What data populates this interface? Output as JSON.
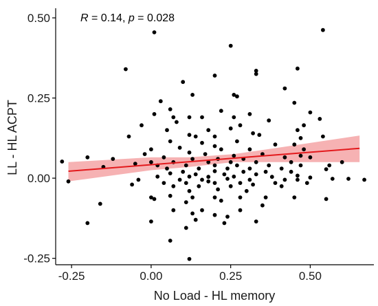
{
  "chart_data": {
    "type": "scatter",
    "xlabel": "No Load - HL memory",
    "ylabel": "LL - HL ACPT",
    "annotation": {
      "r_symbol": "R",
      "r_text": " = 0.14, ",
      "p_symbol": "p",
      "p_text": " = 0.028"
    },
    "xlim": [
      -0.3,
      0.7
    ],
    "ylim": [
      -0.27,
      0.53
    ],
    "x_ticks": [
      -0.25,
      0.0,
      0.25,
      0.5
    ],
    "x_tick_labels": [
      "-0.25",
      "0.00",
      "0.25",
      "0.50"
    ],
    "y_ticks": [
      -0.25,
      0.0,
      0.25,
      0.5
    ],
    "y_tick_labels": [
      "-0.25",
      "0.00",
      "0.25",
      "0.50"
    ],
    "grid": false,
    "colors": {
      "points": "#000000",
      "line": "#e3191c",
      "ribbon": "#f4a5a6"
    },
    "regression": {
      "x_range": [
        -0.26,
        0.655
      ],
      "intercept": 0.042,
      "slope": 0.078,
      "ci_lower": [
        [
          -0.26,
          -0.01
        ],
        [
          0.0,
          0.025
        ],
        [
          0.12,
          0.035
        ],
        [
          0.26,
          0.05
        ],
        [
          0.4,
          0.05
        ],
        [
          0.655,
          0.05
        ]
      ],
      "ci_upper": [
        [
          -0.26,
          0.05
        ],
        [
          0.0,
          0.065
        ],
        [
          0.12,
          0.065
        ],
        [
          0.26,
          0.075
        ],
        [
          0.4,
          0.095
        ],
        [
          0.655,
          0.133
        ]
      ]
    },
    "points": [
      [
        0.01,
        0.455
      ],
      [
        0.54,
        0.462
      ],
      [
        0.25,
        0.413
      ],
      [
        -0.08,
        0.34
      ],
      [
        0.46,
        0.342
      ],
      [
        0.33,
        0.335
      ],
      [
        0.33,
        0.325
      ],
      [
        0.2,
        0.32
      ],
      [
        0.1,
        0.3
      ],
      [
        0.42,
        0.28
      ],
      [
        0.26,
        0.26
      ],
      [
        0.27,
        0.255
      ],
      [
        0.03,
        0.24
      ],
      [
        0.13,
        0.26
      ],
      [
        0.45,
        0.235
      ],
      [
        0.06,
        0.215
      ],
      [
        0.22,
        0.21
      ],
      [
        0.31,
        0.2
      ],
      [
        0.01,
        0.2
      ],
      [
        0.5,
        0.205
      ],
      [
        0.12,
        0.19
      ],
      [
        0.07,
        0.19
      ],
      [
        0.26,
        0.19
      ],
      [
        0.16,
        0.19
      ],
      [
        0.37,
        0.18
      ],
      [
        0.53,
        0.185
      ],
      [
        0.08,
        0.175
      ],
      [
        -0.03,
        0.165
      ],
      [
        0.28,
        0.165
      ],
      [
        0.48,
        0.165
      ],
      [
        0.05,
        0.15
      ],
      [
        0.18,
        0.15
      ],
      [
        0.25,
        0.155
      ],
      [
        0.32,
        0.14
      ],
      [
        0.46,
        0.15
      ],
      [
        -0.07,
        0.13
      ],
      [
        0.12,
        0.135
      ],
      [
        0.14,
        0.13
      ],
      [
        0.2,
        0.13
      ],
      [
        0.34,
        0.135
      ],
      [
        0.47,
        0.125
      ],
      [
        0.54,
        0.13
      ],
      [
        0.06,
        0.115
      ],
      [
        0.16,
        0.11
      ],
      [
        0.27,
        0.115
      ],
      [
        0.39,
        0.105
      ],
      [
        0.45,
        0.105
      ],
      [
        0.0,
        0.09
      ],
      [
        0.09,
        0.095
      ],
      [
        0.22,
        0.09
      ],
      [
        0.31,
        0.09
      ],
      [
        0.48,
        0.09
      ],
      [
        0.2,
        0.1
      ],
      [
        -0.02,
        0.075
      ],
      [
        0.12,
        0.08
      ],
      [
        0.17,
        0.075
      ],
      [
        0.26,
        0.07
      ],
      [
        0.35,
        0.075
      ],
      [
        0.47,
        0.07
      ],
      [
        0.04,
        0.065
      ],
      [
        0.13,
        0.06
      ],
      [
        0.21,
        0.06
      ],
      [
        0.29,
        0.06
      ],
      [
        0.42,
        0.065
      ],
      [
        0.5,
        0.065
      ],
      [
        -0.2,
        0.065
      ],
      [
        -0.12,
        0.06
      ],
      [
        -0.28,
        0.052
      ],
      [
        0.0,
        0.05
      ],
      [
        0.07,
        0.05
      ],
      [
        0.18,
        0.05
      ],
      [
        0.25,
        0.05
      ],
      [
        0.33,
        0.05
      ],
      [
        0.44,
        0.05
      ],
      [
        0.6,
        0.05
      ],
      [
        -0.05,
        0.045
      ],
      [
        0.02,
        0.04
      ],
      [
        0.11,
        0.04
      ],
      [
        0.2,
        0.04
      ],
      [
        0.27,
        0.04
      ],
      [
        0.37,
        0.04
      ],
      [
        0.47,
        0.04
      ],
      [
        0.56,
        0.04
      ],
      [
        -0.15,
        0.035
      ],
      [
        0.05,
        0.03
      ],
      [
        0.15,
        0.03
      ],
      [
        0.24,
        0.03
      ],
      [
        0.31,
        0.03
      ],
      [
        0.41,
        0.03
      ],
      [
        0.55,
        0.028
      ],
      [
        0.1,
        0.02
      ],
      [
        0.2,
        0.022
      ],
      [
        0.29,
        0.02
      ],
      [
        0.36,
        0.02
      ],
      [
        0.44,
        0.02
      ],
      [
        0.06,
        0.015
      ],
      [
        0.14,
        0.012
      ],
      [
        0.23,
        0.012
      ],
      [
        0.33,
        0.012
      ],
      [
        0.46,
        0.008
      ],
      [
        0.02,
        0.005
      ],
      [
        0.12,
        0.005
      ],
      [
        0.18,
        0.004
      ],
      [
        0.26,
        0.005
      ],
      [
        0.38,
        0.004
      ],
      [
        0.5,
        0.002
      ],
      [
        0.57,
        -0.002
      ],
      [
        -0.26,
        -0.01
      ],
      [
        -0.04,
        -0.005
      ],
      [
        0.09,
        -0.005
      ],
      [
        0.16,
        -0.005
      ],
      [
        0.24,
        -0.002
      ],
      [
        0.31,
        -0.005
      ],
      [
        0.42,
        -0.005
      ],
      [
        0.62,
        -0.002
      ],
      [
        0.67,
        -0.005
      ],
      [
        0.04,
        -0.015
      ],
      [
        0.11,
        -0.015
      ],
      [
        0.2,
        -0.015
      ],
      [
        0.28,
        -0.015
      ],
      [
        0.39,
        -0.015
      ],
      [
        0.49,
        -0.015
      ],
      [
        -0.06,
        -0.02
      ],
      [
        0.07,
        -0.025
      ],
      [
        0.15,
        -0.025
      ],
      [
        0.25,
        -0.025
      ],
      [
        0.32,
        -0.02
      ],
      [
        0.41,
        -0.025
      ],
      [
        0.21,
        -0.035
      ],
      [
        0.12,
        -0.04
      ],
      [
        0.3,
        -0.04
      ],
      [
        0.06,
        -0.055
      ],
      [
        0.13,
        -0.06
      ],
      [
        0.0,
        -0.06
      ],
      [
        0.2,
        -0.06
      ],
      [
        0.28,
        -0.06
      ],
      [
        0.36,
        -0.06
      ],
      [
        0.45,
        -0.06
      ],
      [
        0.55,
        -0.065
      ],
      [
        -0.16,
        -0.08
      ],
      [
        0.01,
        -0.065
      ],
      [
        0.11,
        -0.075
      ],
      [
        0.22,
        -0.07
      ],
      [
        0.35,
        -0.085
      ],
      [
        0.07,
        -0.1
      ],
      [
        0.16,
        -0.1
      ],
      [
        0.28,
        -0.1
      ],
      [
        0.13,
        -0.11
      ],
      [
        0.2,
        -0.115
      ],
      [
        0.24,
        -0.12
      ],
      [
        0.0,
        -0.135
      ],
      [
        -0.2,
        -0.14
      ],
      [
        0.14,
        -0.13
      ],
      [
        0.23,
        -0.14
      ],
      [
        0.33,
        -0.135
      ],
      [
        0.11,
        -0.155
      ],
      [
        0.06,
        -0.195
      ],
      [
        0.12,
        -0.252
      ],
      [
        0.46,
        -0.005
      ],
      [
        0.18,
        -0.01
      ]
    ]
  }
}
